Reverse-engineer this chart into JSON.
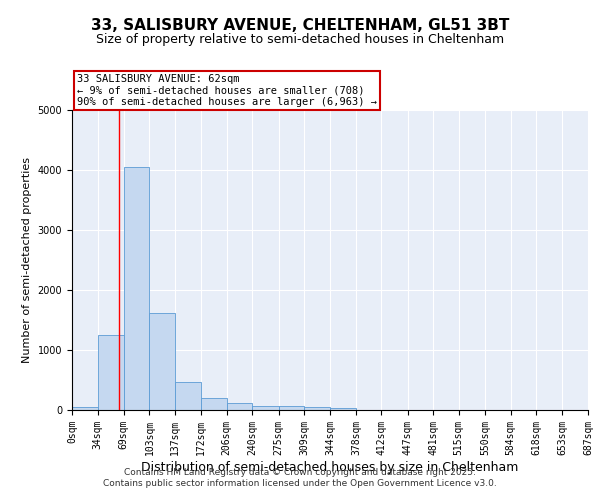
{
  "title": "33, SALISBURY AVENUE, CHELTENHAM, GL51 3BT",
  "subtitle": "Size of property relative to semi-detached houses in Cheltenham",
  "xlabel": "Distribution of semi-detached houses by size in Cheltenham",
  "ylabel": "Number of semi-detached properties",
  "bins": [
    0,
    34,
    69,
    103,
    137,
    172,
    206,
    240,
    275,
    309,
    344,
    378,
    412,
    447,
    481,
    515,
    550,
    584,
    618,
    653,
    687
  ],
  "counts": [
    50,
    1250,
    4050,
    1625,
    475,
    200,
    115,
    75,
    60,
    50,
    35,
    0,
    0,
    0,
    0,
    0,
    0,
    0,
    0,
    0
  ],
  "bar_color": "#c5d8f0",
  "bar_edge_color": "#5b9bd5",
  "ylim": [
    0,
    5000
  ],
  "xlim": [
    0,
    687
  ],
  "red_line_x": 62,
  "annotation_line1": "33 SALISBURY AVENUE: 62sqm",
  "annotation_line2": "← 9% of semi-detached houses are smaller (708)",
  "annotation_line3": "90% of semi-detached houses are larger (6,963) →",
  "annotation_box_color": "#ffffff",
  "annotation_box_edge_color": "#cc0000",
  "footer_line1": "Contains HM Land Registry data © Crown copyright and database right 2025.",
  "footer_line2": "Contains public sector information licensed under the Open Government Licence v3.0.",
  "bg_color": "#e8eef8",
  "grid_color": "#ffffff",
  "title_fontsize": 11,
  "subtitle_fontsize": 9,
  "xlabel_fontsize": 9,
  "ylabel_fontsize": 8,
  "tick_fontsize": 7,
  "annotation_fontsize": 7.5,
  "footer_fontsize": 6.5
}
